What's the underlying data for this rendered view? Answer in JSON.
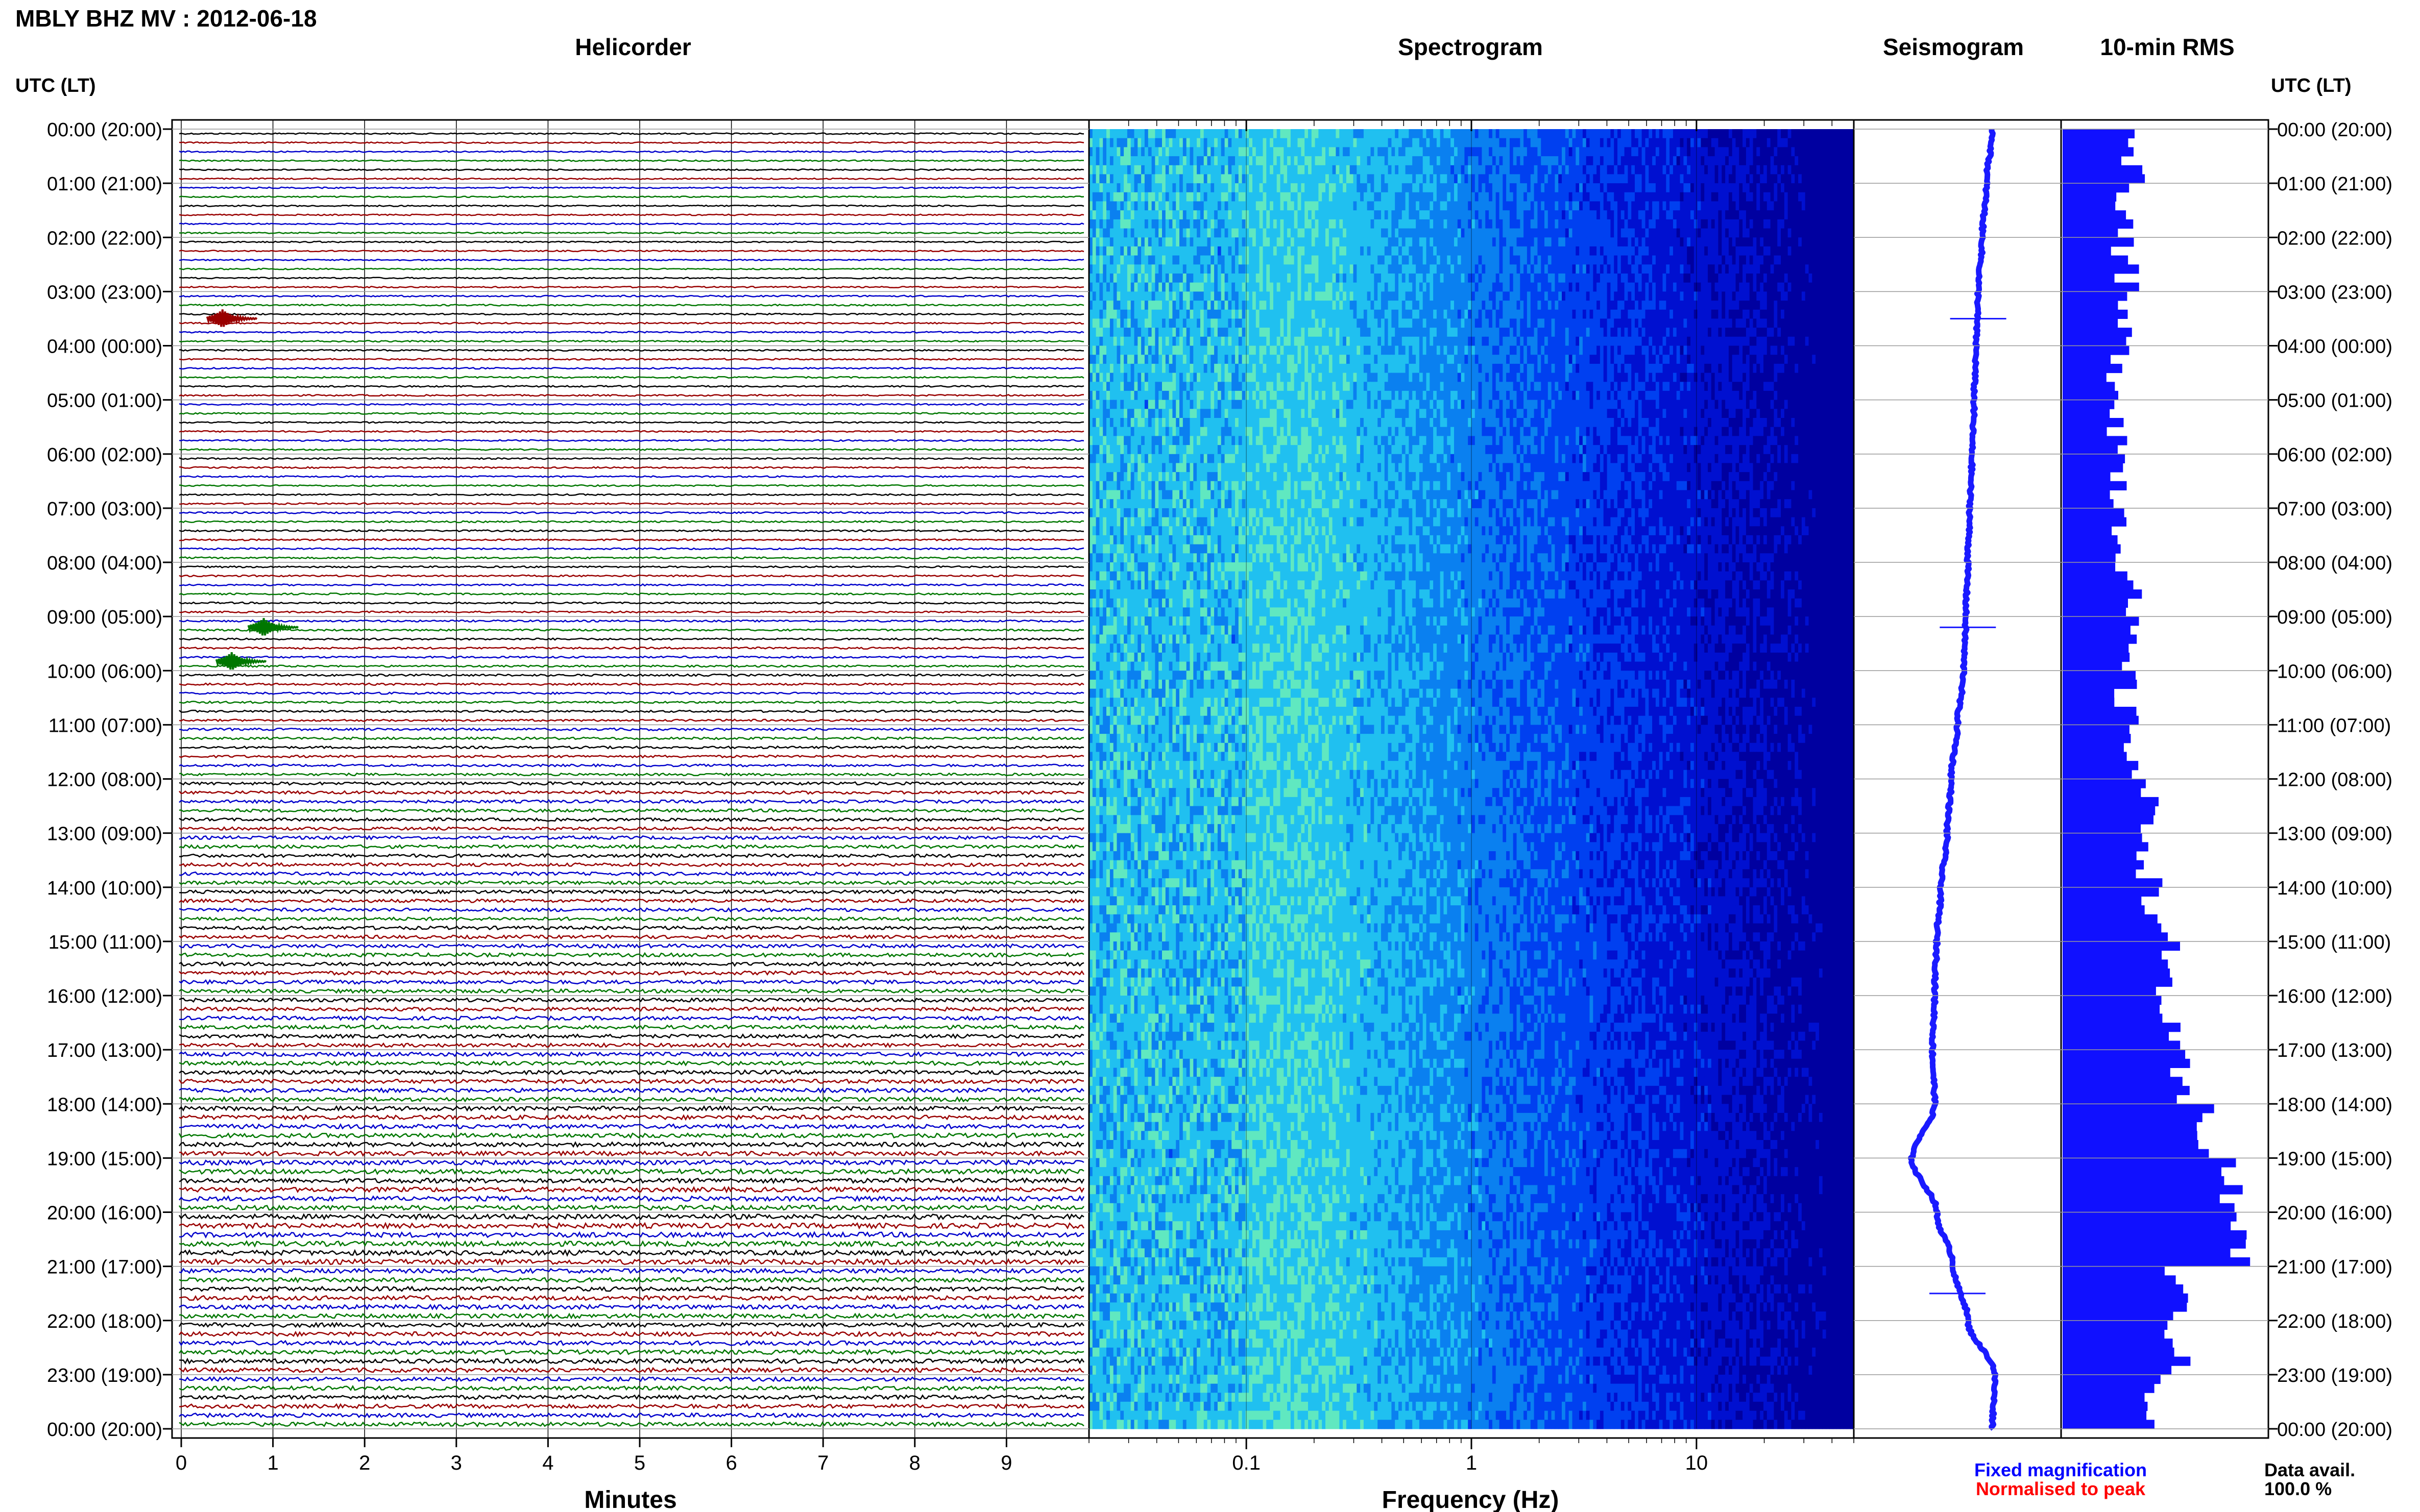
{
  "header": {
    "title": "MBLY BHZ MV : 2012-06-18",
    "panel_titles": {
      "helicorder": "Helicorder",
      "spectrogram": "Spectrogram",
      "seismogram": "Seismogram",
      "rms": "10-min RMS"
    },
    "axis_header_left": "UTC (LT)",
    "axis_header_right": "UTC (LT)"
  },
  "time_labels": [
    "00:00 (20:00)",
    "01:00 (21:00)",
    "02:00 (22:00)",
    "03:00 (23:00)",
    "04:00 (00:00)",
    "05:00 (01:00)",
    "06:00 (02:00)",
    "07:00 (03:00)",
    "08:00 (04:00)",
    "09:00 (05:00)",
    "10:00 (06:00)",
    "11:00 (07:00)",
    "12:00 (08:00)",
    "13:00 (09:00)",
    "14:00 (10:00)",
    "15:00 (11:00)",
    "16:00 (12:00)",
    "17:00 (13:00)",
    "18:00 (14:00)",
    "19:00 (15:00)",
    "20:00 (16:00)",
    "21:00 (17:00)",
    "22:00 (18:00)",
    "23:00 (19:00)",
    "00:00 (20:00)"
  ],
  "colors": {
    "trace_cycle": [
      "#000000",
      "#990000",
      "#0000cc",
      "#007700"
    ],
    "seismogram": "#1a1aff",
    "rms_bar": "#1010ff",
    "fixed_magnification": "#0000ff",
    "normalised_to_peak": "#ff0000"
  },
  "footer": {
    "minutes_label": "Minutes",
    "frequency_label": "Frequency (Hz)",
    "fixed_magnification": "Fixed magnification",
    "normalised_to_peak": "Normalised to peak",
    "data_avail_label": "Data avail.",
    "data_avail_value": "100.0 %"
  },
  "chart_data": [
    {
      "type": "line",
      "title": "Helicorder",
      "xlabel": "Minutes",
      "xlim": [
        0,
        10
      ],
      "x_ticks": [
        0,
        1,
        2,
        3,
        4,
        5,
        6,
        7,
        8,
        9
      ],
      "rows_per_hour": 6,
      "row_count": 144,
      "events": [
        {
          "hour": 3.5,
          "minute": 0.45,
          "color": "#990000"
        },
        {
          "hour": 9.2,
          "minute": 0.9,
          "color": "#007700"
        },
        {
          "hour": 9.83,
          "minute": 0.55,
          "color": "#007700"
        }
      ],
      "row_noise": [
        0.4,
        0.4,
        0.4,
        0.4,
        0.4,
        0.4,
        0.4,
        0.4,
        0.4,
        0.4,
        0.4,
        0.4,
        0.4,
        0.4,
        0.4,
        0.4,
        0.4,
        0.4,
        0.45,
        0.45,
        0.45,
        0.45,
        0.45,
        0.45,
        0.45,
        0.45,
        0.45,
        0.45,
        0.45,
        0.45,
        0.45,
        0.45,
        0.45,
        0.45,
        0.45,
        0.45,
        0.45,
        0.45,
        0.45,
        0.45,
        0.45,
        0.45,
        0.5,
        0.5,
        0.5,
        0.5,
        0.5,
        0.5,
        0.5,
        0.5,
        0.5,
        0.5,
        0.5,
        0.5,
        0.55,
        0.55,
        0.55,
        0.55,
        0.55,
        0.55,
        0.6,
        0.6,
        0.6,
        0.6,
        0.6,
        0.6,
        0.7,
        0.7,
        0.7,
        0.7,
        0.7,
        0.7,
        0.9,
        0.9,
        0.9,
        0.9,
        0.9,
        0.9,
        1.0,
        1.0,
        1.0,
        1.0,
        1.0,
        1.0,
        1.0,
        1.0,
        1.0,
        1.0,
        1.0,
        1.0,
        1.1,
        1.1,
        1.1,
        1.1,
        1.1,
        1.1,
        1.1,
        1.1,
        1.1,
        1.1,
        1.1,
        1.1,
        1.2,
        1.2,
        1.2,
        1.2,
        1.2,
        1.2,
        1.3,
        1.3,
        1.3,
        1.3,
        1.3,
        1.3,
        1.4,
        1.4,
        1.4,
        1.4,
        1.4,
        1.4,
        1.5,
        1.5,
        1.5,
        1.5,
        1.5,
        1.5,
        1.3,
        1.3,
        1.3,
        1.3,
        1.3,
        1.3,
        1.3,
        1.3,
        1.3,
        1.3,
        1.3,
        1.3,
        1.2,
        1.2,
        1.2,
        1.2,
        1.2,
        1.2
      ]
    },
    {
      "type": "heatmap",
      "title": "Spectrogram",
      "xlabel": "Frequency (Hz)",
      "x_scale": "log",
      "xlim": [
        0.02,
        50
      ],
      "x_tick_labels": [
        {
          "value": 0.1,
          "label": "0.1"
        },
        {
          "value": 1,
          "label": "1"
        },
        {
          "value": 10,
          "label": "10"
        }
      ],
      "colormap": [
        "#0000a0",
        "#0010d0",
        "#0040f0",
        "#0a80f0",
        "#20c0f0",
        "#60e8c0"
      ]
    },
    {
      "type": "line",
      "title": "Seismogram",
      "ylim_hours": [
        0,
        24
      ],
      "xlim": [
        0,
        1
      ],
      "hours": [
        0,
        1,
        2,
        3,
        4,
        5,
        6,
        7,
        8,
        9,
        10,
        11,
        12,
        13,
        14,
        15,
        16,
        17,
        18,
        19,
        20,
        21,
        22,
        23,
        24
      ],
      "values": [
        0.67,
        0.64,
        0.62,
        0.6,
        0.59,
        0.58,
        0.57,
        0.56,
        0.55,
        0.54,
        0.53,
        0.5,
        0.47,
        0.45,
        0.42,
        0.4,
        0.39,
        0.38,
        0.39,
        0.28,
        0.4,
        0.48,
        0.55,
        0.68,
        0.67
      ],
      "spikes": [
        {
          "hour": 3.5,
          "value": 0.6
        },
        {
          "hour": 9.2,
          "value": 0.55
        },
        {
          "hour": 21.5,
          "value": 0.5
        }
      ]
    },
    {
      "type": "bar",
      "title": "10-min RMS",
      "orientation": "horizontal",
      "xlim": [
        0,
        1
      ],
      "bins_per_hour": 6,
      "hourly_values": [
        0.35,
        0.32,
        0.3,
        0.28,
        0.28,
        0.28,
        0.28,
        0.3,
        0.32,
        0.3,
        0.3,
        0.35,
        0.4,
        0.42,
        0.45,
        0.5,
        0.5,
        0.55,
        0.7,
        0.8,
        0.85,
        0.55,
        0.55,
        0.45
      ]
    }
  ]
}
